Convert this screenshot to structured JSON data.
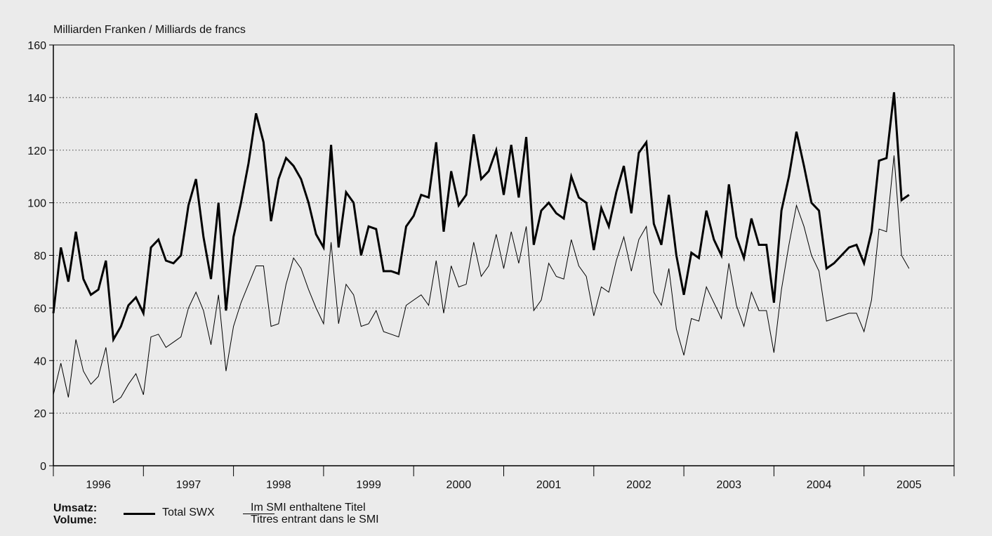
{
  "chart_data": {
    "type": "line",
    "ylabel": "Milliarden Franken / Milliards de francs",
    "ylim": [
      0,
      160
    ],
    "yticks": [
      0,
      20,
      40,
      60,
      80,
      100,
      120,
      140,
      160
    ],
    "x_start": "1995-12",
    "x_end": "2005-12",
    "year_labels": [
      "1996",
      "1997",
      "1998",
      "1999",
      "2000",
      "2001",
      "2002",
      "2003",
      "2004",
      "2005"
    ],
    "grid": "horizontal dotted",
    "legend": {
      "title_line1": "Umsatz:",
      "title_line2": "Volume:",
      "position": "bottom-left"
    },
    "series": [
      {
        "name": "Total SWX",
        "style": "thick",
        "color": "#000000",
        "values": [
          58,
          83,
          70,
          89,
          71,
          65,
          67,
          78,
          48,
          53,
          61,
          64,
          58,
          83,
          86,
          78,
          77,
          80,
          99,
          109,
          87,
          71,
          100,
          59,
          87,
          100,
          115,
          134,
          123,
          93,
          109,
          117,
          114,
          109,
          100,
          88,
          83,
          122,
          83,
          104,
          100,
          80,
          91,
          90,
          74,
          74,
          73,
          91,
          95,
          103,
          102,
          123,
          89,
          112,
          99,
          103,
          126,
          109,
          112,
          120,
          103,
          122,
          102,
          125,
          84,
          97,
          100,
          96,
          94,
          110,
          102,
          100,
          82,
          98,
          91,
          104,
          114,
          96,
          119,
          123,
          92,
          84,
          103,
          80,
          65,
          81,
          79,
          97,
          86,
          80,
          107,
          87,
          79,
          94,
          84,
          84,
          62,
          97,
          110,
          127,
          114,
          100,
          97,
          75,
          77,
          80,
          83,
          84,
          77,
          89,
          116,
          117,
          142,
          101,
          103
        ]
      },
      {
        "name_line1": "Im SMI enthaltene Titel",
        "name_line2": "Titres entrant dans le SMI",
        "style": "thin",
        "color": "#000000",
        "values": [
          27,
          39,
          26,
          48,
          36,
          31,
          34,
          45,
          24,
          26,
          31,
          35,
          27,
          49,
          50,
          45,
          47,
          49,
          60,
          66,
          59,
          46,
          65,
          36,
          53,
          62,
          69,
          76,
          76,
          53,
          54,
          69,
          79,
          75,
          67,
          60,
          54,
          85,
          54,
          69,
          65,
          53,
          54,
          59,
          51,
          50,
          49,
          61,
          63,
          65,
          61,
          78,
          58,
          76,
          68,
          69,
          85,
          72,
          76,
          88,
          75,
          89,
          77,
          91,
          59,
          63,
          77,
          72,
          71,
          86,
          76,
          72,
          57,
          68,
          66,
          78,
          87,
          74,
          86,
          91,
          66,
          61,
          75,
          52,
          42,
          56,
          55,
          68,
          62,
          56,
          77,
          61,
          53,
          66,
          59,
          59,
          43,
          67,
          84,
          99,
          91,
          80,
          74,
          55,
          56,
          57,
          58,
          58,
          51,
          63,
          90,
          89,
          118,
          80,
          75
        ]
      }
    ]
  }
}
